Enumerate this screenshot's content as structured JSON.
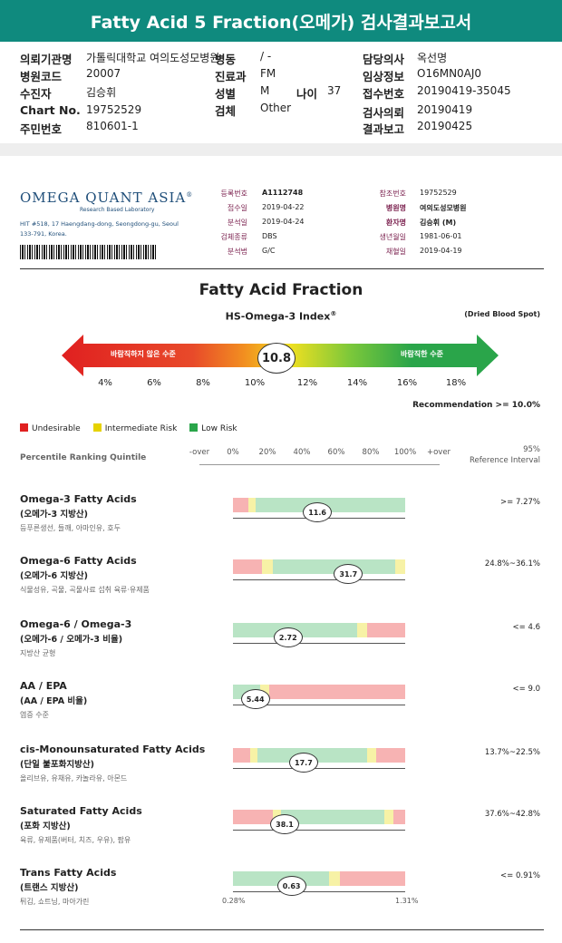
{
  "banner": "Fatty Acid 5 Fraction(오메가) 검사결과보고서",
  "info": {
    "col1": [
      {
        "label": "의뢰기관명",
        "value": "가톨릭대학교 여의도성모병원"
      },
      {
        "label": "병원코드",
        "value": "20007"
      },
      {
        "label": "수진자",
        "value": "김승휘"
      },
      {
        "label": "Chart No.",
        "value": "19752529"
      },
      {
        "label": "주민번호",
        "value": "810601-1"
      }
    ],
    "col2": [
      {
        "label": "병동",
        "value": "/ -"
      },
      {
        "label": "진료과",
        "value": "FM"
      },
      {
        "label": "성별",
        "value": "M"
      },
      {
        "label": "검체",
        "value": "Other"
      }
    ],
    "age": {
      "label": "나이",
      "value": "37"
    },
    "col3": [
      {
        "label": "담당의사",
        "value": "옥선명"
      },
      {
        "label": "임상정보",
        "value": "O16MN0AJ0"
      },
      {
        "label": "접수번호",
        "value": "20190419-35045"
      },
      {
        "label": "검사의뢰",
        "value": "20190419"
      },
      {
        "label": "결과보고",
        "value": "20190425"
      }
    ]
  },
  "lab": {
    "name": "OMEGA QUANT ASIA",
    "registered": "®",
    "sub": "Research Based Laboratory",
    "address": "HIT #518, 17 Haengdang-dong, Seongdong-gu, Seoul 133-791, Korea."
  },
  "meta_left": [
    {
      "label": "등록번호",
      "value": "A1112748"
    },
    {
      "label": "접수일",
      "value": "2019-04-22"
    },
    {
      "label": "분석일",
      "value": "2019-04-24"
    },
    {
      "label": "검체종류",
      "value": "DBS"
    },
    {
      "label": "분석법",
      "value": "G/C"
    }
  ],
  "meta_right": [
    {
      "label": "참조번호",
      "value": "19752529"
    },
    {
      "label": "병원명",
      "value": "여의도성모병원"
    },
    {
      "label": "환자명",
      "value": "김승휘 (M)"
    },
    {
      "label": "생년월일",
      "value": "1981-06-01"
    },
    {
      "label": "채혈일",
      "value": "2019-04-19"
    }
  ],
  "report": {
    "title": "Fatty Acid Fraction",
    "index_label": "HS-Omega-3 Index",
    "index_sup": "®",
    "sample_note": "(Dried Blood Spot)",
    "left_zone": "바람직하지 않은 수준",
    "right_zone": "바람직한 수준",
    "index_value": "10.8",
    "ticks": [
      "4%",
      "6%",
      "8%",
      "10%",
      "12%",
      "14%",
      "16%",
      "18%"
    ],
    "recommendation": "Recommendation  >= 10.0%"
  },
  "legend": [
    {
      "label": "Undesirable",
      "color": "#e02020"
    },
    {
      "label": "Intermediate Risk",
      "color": "#e6d200"
    },
    {
      "label": "Low Risk",
      "color": "#2aa54a"
    }
  ],
  "table_head": {
    "left": "Percentile Ranking Quintile",
    "axis": [
      "-over",
      "0%",
      "20%",
      "40%",
      "60%",
      "80%",
      "100%",
      "+over"
    ],
    "ref_line1": "95%",
    "ref_line2": "Reference Interval"
  },
  "zone_colors": {
    "red": "#f7b3b3",
    "yellow": "#f7f2a6",
    "green": "#b9e4c5"
  },
  "rows": [
    {
      "name": "Omega-3 Fatty Acids",
      "sub": "(오메가-3 지방산)",
      "desc": "등푸른생선, 들깨, 아마인유, 호두",
      "value": "11.6",
      "marker_pos": 0.49,
      "ref": ">= 7.27%",
      "segments": [
        [
          "red",
          0.09
        ],
        [
          "yellow",
          0.04
        ],
        [
          "green",
          0.87
        ]
      ]
    },
    {
      "name": "Omega-6 Fatty Acids",
      "sub": "(오메가-6 지방산)",
      "desc": "식물성유, 곡물, 곡물사료 섭취 육류·유제품",
      "value": "31.7",
      "marker_pos": 0.67,
      "ref": "24.8%~36.1%",
      "segments": [
        [
          "red",
          0.17
        ],
        [
          "yellow",
          0.06
        ],
        [
          "green",
          0.71
        ],
        [
          "yellow",
          0.06
        ]
      ]
    },
    {
      "name": "Omega-6 / Omega-3",
      "sub": "(오메가-6 / 오메가-3 비율)",
      "desc": "지방산 균형",
      "value": "2.72",
      "marker_pos": 0.32,
      "ref": "<= 4.6",
      "segments": [
        [
          "green",
          0.72
        ],
        [
          "yellow",
          0.06
        ],
        [
          "red",
          0.22
        ]
      ]
    },
    {
      "name": "AA / EPA",
      "sub": "(AA / EPA 비율)",
      "desc": "염증 수준",
      "value": "5.44",
      "marker_pos": 0.13,
      "ref": "<= 9.0",
      "segments": [
        [
          "green",
          0.16
        ],
        [
          "yellow",
          0.05
        ],
        [
          "red",
          0.79
        ]
      ]
    },
    {
      "name": "cis-Monounsaturated Fatty Acids",
      "sub": "(단일 불포화지방산)",
      "desc": "올리브유, 유채유, 카놀라유, 아몬드",
      "value": "17.7",
      "marker_pos": 0.41,
      "ref": "13.7%~22.5%",
      "segments": [
        [
          "red",
          0.1
        ],
        [
          "yellow",
          0.04
        ],
        [
          "green",
          0.64
        ],
        [
          "yellow",
          0.05
        ],
        [
          "red",
          0.17
        ]
      ]
    },
    {
      "name": "Saturated Fatty Acids",
      "sub": "(포화 지방산)",
      "desc": "육류, 유제품(버터, 치즈, 우유), 팜유",
      "value": "38.1",
      "marker_pos": 0.3,
      "ref": "37.6%~42.8%",
      "segments": [
        [
          "red",
          0.23
        ],
        [
          "yellow",
          0.05
        ],
        [
          "green",
          0.6
        ],
        [
          "yellow",
          0.05
        ],
        [
          "red",
          0.07
        ]
      ]
    },
    {
      "name": "Trans Fatty Acids",
      "sub": "(트랜스 지방산)",
      "desc": "튀김, 쇼트닝, 마아가린",
      "value": "0.63",
      "marker_pos": 0.34,
      "ref": "<= 0.91%",
      "segments": [
        [
          "green",
          0.56
        ],
        [
          "yellow",
          0.06
        ],
        [
          "red",
          0.38
        ]
      ]
    }
  ],
  "trans_range": {
    "min": "0.28%",
    "max": "1.31%"
  }
}
